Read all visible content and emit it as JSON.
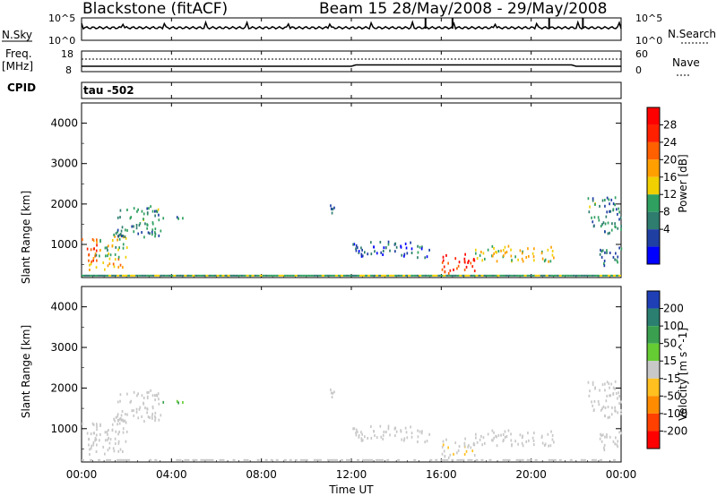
{
  "header": {
    "station": "Blackstone (fitACF)",
    "beam_dates": "Beam 15 28/May/2008 - 29/May/2008"
  },
  "left_labels": {
    "nsky": "N.Sky",
    "freq": "Freq.",
    "mhz": "[MHz]",
    "cpid": "CPID"
  },
  "right_labels": {
    "nsearch": "N.Search",
    "nave": "Nave"
  },
  "noise_ticks": {
    "top": "10^5",
    "bottom": "10^0"
  },
  "freq_ticks": {
    "top": "18",
    "bottom": "8"
  },
  "nave_ticks": {
    "top": "60",
    "bottom": "0"
  },
  "cpid_text": "tau -502",
  "x_axis": {
    "ticks": [
      "00:00",
      "04:00",
      "08:00",
      "12:00",
      "16:00",
      "20:00",
      "00:00"
    ],
    "label": "Time UT"
  },
  "power_panel": {
    "ylabel": "Slant Range [km]",
    "yticks": [
      "4000",
      "3000",
      "2000",
      "1000"
    ],
    "colorbar_label": "Power [dB]",
    "colorbar_ticks": [
      "28",
      "24",
      "20",
      "16",
      "12",
      "8",
      "4"
    ],
    "colors": [
      "#0000ff",
      "#1f3fa3",
      "#2e7d6e",
      "#2fa060",
      "#f0d000",
      "#ffa000",
      "#ff6000",
      "#ff2000",
      "#ff0000"
    ]
  },
  "velocity_panel": {
    "ylabel": "Slant Range [km]",
    "yticks": [
      "4000",
      "3000",
      "2000",
      "1000"
    ],
    "colorbar_label": "Velocity [m s^-1]",
    "colorbar_ticks": [
      "200",
      "100",
      "50",
      "15",
      "-15",
      "-50",
      "-100",
      "-200"
    ],
    "colors": [
      "#1e3fb5",
      "#2a7f70",
      "#3aa050",
      "#66cc33",
      "#c8c8c8",
      "#ffc020",
      "#ff8c00",
      "#ff4000",
      "#ff0000"
    ]
  },
  "chart_data": {
    "type": "heatmap",
    "x_range_hours": [
      0,
      24
    ],
    "y_range_km": [
      180,
      4500
    ],
    "power_range_db": [
      0,
      32
    ],
    "velocity_range": [
      -250,
      250
    ],
    "scatter_regions": [
      {
        "t0": 0.0,
        "t1": 0.7,
        "r0": 600,
        "r1": 1200,
        "power": 24,
        "velocity": 0
      },
      {
        "t0": 0.2,
        "t1": 1.8,
        "r0": 400,
        "r1": 700,
        "power": 20,
        "velocity": 0
      },
      {
        "t0": 0.5,
        "t1": 2.0,
        "r0": 700,
        "r1": 1300,
        "power": 14,
        "velocity": 0
      },
      {
        "t0": 1.5,
        "t1": 3.5,
        "r0": 1200,
        "r1": 2000,
        "power": 10,
        "velocity": 0
      },
      {
        "t0": 3.5,
        "t1": 4.5,
        "r0": 1650,
        "r1": 1750,
        "power": 8,
        "velocity": 80
      },
      {
        "t0": 10.7,
        "t1": 11.3,
        "r0": 1800,
        "r1": 2000,
        "power": 6,
        "velocity": 0
      },
      {
        "t0": 12.0,
        "t1": 15.5,
        "r0": 700,
        "r1": 1100,
        "power": 6,
        "velocity": 0
      },
      {
        "t0": 16.0,
        "t1": 17.5,
        "r0": 300,
        "r1": 800,
        "power": 28,
        "velocity": -20
      },
      {
        "t0": 17.5,
        "t1": 21.0,
        "r0": 600,
        "r1": 1000,
        "power": 16,
        "velocity": 0
      },
      {
        "t0": 22.5,
        "t1": 24.0,
        "r0": 1300,
        "r1": 2200,
        "power": 10,
        "velocity": 0
      },
      {
        "t0": 23.0,
        "t1": 24.0,
        "r0": 500,
        "r1": 1000,
        "power": 8,
        "velocity": 0
      }
    ],
    "ground_scatter_range_km": 250
  }
}
